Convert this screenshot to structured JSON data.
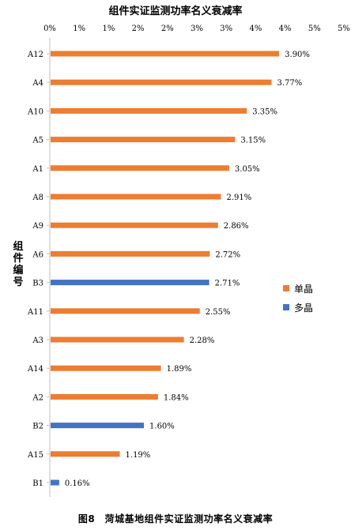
{
  "chart_data": {
    "type": "bar",
    "orientation": "horizontal",
    "title": "组件实证监测功率名义衰减率",
    "ylabel": "组件编号",
    "xlim": [
      0,
      5
    ],
    "xticks": [
      "0%",
      "1%",
      "1%",
      "2%",
      "2%",
      "3%",
      "3%",
      "4%",
      "4%",
      "5%",
      "5%"
    ],
    "xtick_values": [
      0,
      0.5,
      1.0,
      1.5,
      2.0,
      2.5,
      3.0,
      3.5,
      4.0,
      4.5,
      5.0
    ],
    "x_axis_position": "top",
    "categories": [
      "A12",
      "A4",
      "A10",
      "A5",
      "A1",
      "A8",
      "A9",
      "A6",
      "B3",
      "A11",
      "A3",
      "A14",
      "A2",
      "B2",
      "A15",
      "B1"
    ],
    "values": [
      3.9,
      3.77,
      3.35,
      3.15,
      3.05,
      2.91,
      2.86,
      2.72,
      2.71,
      2.55,
      2.28,
      1.89,
      1.84,
      1.6,
      1.19,
      0.16
    ],
    "value_labels": [
      "3.90%",
      "3.77%",
      "3.35%",
      "3.15%",
      "3.05%",
      "2.91%",
      "2.86%",
      "2.72%",
      "2.71%",
      "2.55%",
      "2.28%",
      "1.89%",
      "1.84%",
      "1.60%",
      "1.19%",
      "0.16%"
    ],
    "groups": [
      "mono",
      "mono",
      "mono",
      "mono",
      "mono",
      "mono",
      "mono",
      "mono",
      "poly",
      "mono",
      "mono",
      "mono",
      "mono",
      "poly",
      "mono",
      "poly"
    ],
    "series": [
      {
        "key": "mono",
        "name": "单晶",
        "color": "#ED7D31"
      },
      {
        "key": "poly",
        "name": "多晶",
        "color": "#4472C4"
      }
    ],
    "legend_position": "right",
    "grid": false
  },
  "caption": "图8　菏城基地组件实证监测功率名义衰减率"
}
